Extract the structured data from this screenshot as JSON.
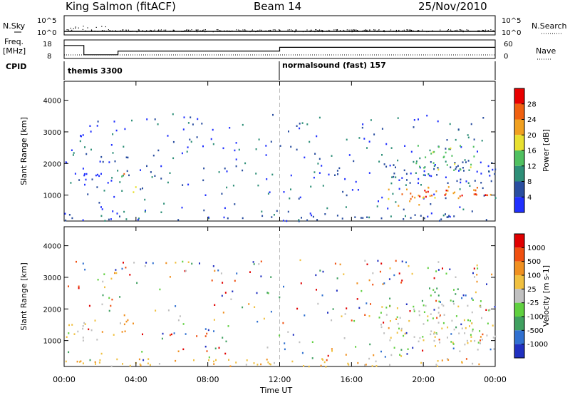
{
  "header": {
    "station": "King Salmon (fitACF)",
    "beam": "Beam 14",
    "date": "25/Nov/2010"
  },
  "top_panel": {
    "left_labels": {
      "nsky": "N.Sky",
      "freq": "Freq.",
      "freq_unit": "[MHz]",
      "cpid": "CPID"
    },
    "right_labels": {
      "nsearch": "N.Search",
      "nave": "Nave"
    },
    "left_ticks_n": [
      "10^5",
      "10^0"
    ],
    "right_ticks_n": [
      "10^5",
      "10^0"
    ],
    "left_ticks_f": [
      "18",
      "8"
    ],
    "right_ticks_f": [
      "60",
      "0"
    ],
    "cpid_segments": [
      {
        "label": "themis 3300",
        "start_hour": 0
      },
      {
        "label": "normalsound (fast) 157",
        "start_hour": 12
      }
    ],
    "freq_series": {
      "x": [
        0,
        1.1,
        1.1,
        3.0,
        3.0,
        12,
        12,
        24
      ],
      "y": [
        15,
        15,
        10,
        10,
        12,
        12,
        14,
        14
      ]
    }
  },
  "chart_data": [
    {
      "type": "heatmap",
      "title": "",
      "xlabel": "Time UT",
      "ylabel": "Slant Range [km]",
      "xlim": [
        0,
        24
      ],
      "ylim": [
        180,
        4600
      ],
      "x_tick_labels": [
        "00:00",
        "04:00",
        "08:00",
        "12:00",
        "16:00",
        "20:00",
        "00:00"
      ],
      "y_ticks": [
        1000,
        2000,
        3000,
        4000
      ],
      "colorbar": {
        "label": "Power [dB]",
        "ticks": [
          "4",
          "8",
          "12",
          "16",
          "20",
          "24",
          "28"
        ],
        "colors": [
          "#2030ff",
          "#2a4ea0",
          "#2e8f78",
          "#50c060",
          "#e8e030",
          "#f0a020",
          "#f06010",
          "#e80000"
        ]
      },
      "regions": [
        {
          "t": [
            0.0,
            0.4
          ],
          "r": [
            1150,
            1450
          ],
          "level": 2
        },
        {
          "t": [
            0.2,
            1.5
          ],
          "r": [
            1350,
            1800
          ],
          "level": 0
        },
        {
          "t": [
            1.5,
            2.6
          ],
          "r": [
            1200,
            1700
          ],
          "level": 0
        },
        {
          "t": [
            3.0,
            3.7
          ],
          "r": [
            1150,
            1800
          ],
          "level": 2
        },
        {
          "t": [
            3.1,
            3.5
          ],
          "r": [
            1450,
            1700
          ],
          "level": 6
        },
        {
          "t": [
            3.5,
            4.2
          ],
          "r": [
            1100,
            1400
          ],
          "level": 4
        },
        {
          "t": [
            18.0,
            24.0
          ],
          "r": [
            900,
            1300
          ],
          "level": 5
        },
        {
          "t": [
            19.5,
            24.0
          ],
          "r": [
            950,
            1200
          ],
          "level": 7
        },
        {
          "t": [
            17.5,
            24.0
          ],
          "r": [
            1400,
            2100
          ],
          "level": 1
        },
        {
          "t": [
            19.5,
            23.0
          ],
          "r": [
            1800,
            2600
          ],
          "level": 3
        },
        {
          "t": [
            18.5,
            20.0
          ],
          "r": [
            650,
            1000
          ],
          "level": 5
        },
        {
          "t": [
            0.0,
            24.0
          ],
          "r": [
            200,
            400
          ],
          "level": 1
        }
      ]
    },
    {
      "type": "heatmap",
      "title": "",
      "xlabel": "Time UT",
      "ylabel": "Slant Range [km]",
      "xlim": [
        0,
        24
      ],
      "ylim": [
        180,
        4600
      ],
      "x_tick_labels": [
        "00:00",
        "04:00",
        "08:00",
        "12:00",
        "16:00",
        "20:00",
        "00:00"
      ],
      "y_ticks": [
        1000,
        2000,
        3000,
        4000
      ],
      "colorbar": {
        "label": "Velocity [m s-1]",
        "ticks": [
          "1000",
          "500",
          "100",
          "25",
          "-25",
          "-100",
          "-500",
          "-1000"
        ],
        "colors": [
          "#2030c0",
          "#3070d0",
          "#40a060",
          "#60d040",
          "#c0c0c0",
          "#f0c040",
          "#f09020",
          "#f05010",
          "#e00000"
        ]
      },
      "regions": [
        {
          "t": [
            0.0,
            1.6
          ],
          "r": [
            1000,
            1600
          ],
          "level": 4
        },
        {
          "t": [
            3.0,
            3.8
          ],
          "r": [
            1200,
            1900
          ],
          "level": 6
        },
        {
          "t": [
            17.5,
            24.0
          ],
          "r": [
            900,
            2200
          ],
          "level": 4
        },
        {
          "t": [
            19.8,
            23.0
          ],
          "r": [
            2200,
            2700
          ],
          "level": 2
        },
        {
          "t": [
            18.5,
            19.5
          ],
          "r": [
            500,
            800
          ],
          "level": 3
        },
        {
          "t": [
            0.0,
            24.0
          ],
          "r": [
            200,
            450
          ],
          "level": 5
        }
      ]
    }
  ]
}
